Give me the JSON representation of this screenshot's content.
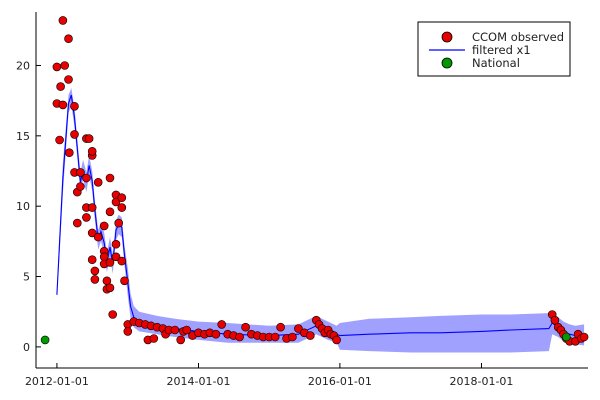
{
  "chart_data": {
    "type": "scatter",
    "title": "",
    "xlabel": "",
    "ylabel": "",
    "x_ticks": [
      "2012-01-01",
      "2014-01-01",
      "2016-01-01",
      "2018-01-01"
    ],
    "x_range": [
      "2011-09-15",
      "2019-07-05"
    ],
    "y_ticks": [
      0,
      5,
      10,
      15,
      20
    ],
    "ylim": [
      -1.5,
      23.8
    ],
    "grid": false,
    "legend_position": "top-right",
    "legend": [
      {
        "label": "CCOM observed",
        "kind": "marker",
        "color": "#e60000"
      },
      {
        "label": "filtered x1",
        "kind": "line",
        "color": "#0000ff"
      },
      {
        "label": "National",
        "kind": "marker",
        "color": "#009900"
      }
    ],
    "series": [
      {
        "name": "CCOM observed",
        "kind": "scatter",
        "color": "#e60000",
        "points": [
          [
            "2012-01-01",
            19.9
          ],
          [
            "2012-01-01",
            17.3
          ],
          [
            "2012-01-15",
            14.7
          ],
          [
            "2012-01-20",
            18.5
          ],
          [
            "2012-02-01",
            23.2
          ],
          [
            "2012-02-01",
            17.2
          ],
          [
            "2012-02-10",
            20.0
          ],
          [
            "2012-03-01",
            21.9
          ],
          [
            "2012-03-01",
            19.0
          ],
          [
            "2012-03-05",
            13.8
          ],
          [
            "2012-04-01",
            17.1
          ],
          [
            "2012-04-01",
            15.1
          ],
          [
            "2012-04-01",
            12.4
          ],
          [
            "2012-04-15",
            11.0
          ],
          [
            "2012-04-15",
            8.8
          ],
          [
            "2012-05-01",
            12.4
          ],
          [
            "2012-05-01",
            11.4
          ],
          [
            "2012-06-01",
            14.8
          ],
          [
            "2012-06-01",
            12.0
          ],
          [
            "2012-06-01",
            9.9
          ],
          [
            "2012-06-01",
            9.2
          ],
          [
            "2012-06-15",
            14.8
          ],
          [
            "2012-07-01",
            13.6
          ],
          [
            "2012-07-01",
            13.9
          ],
          [
            "2012-07-01",
            9.9
          ],
          [
            "2012-07-01",
            8.1
          ],
          [
            "2012-07-01",
            6.2
          ],
          [
            "2012-07-15",
            5.4
          ],
          [
            "2012-07-15",
            4.8
          ],
          [
            "2012-08-01",
            11.7
          ],
          [
            "2012-08-01",
            7.8
          ],
          [
            "2012-09-01",
            8.6
          ],
          [
            "2012-09-01",
            6.8
          ],
          [
            "2012-09-01",
            6.4
          ],
          [
            "2012-09-01",
            5.9
          ],
          [
            "2012-09-15",
            4.7
          ],
          [
            "2012-09-15",
            4.1
          ],
          [
            "2012-10-01",
            12.0
          ],
          [
            "2012-10-01",
            9.6
          ],
          [
            "2012-10-01",
            6.0
          ],
          [
            "2012-10-01",
            4.2
          ],
          [
            "2012-10-15",
            2.3
          ],
          [
            "2012-11-01",
            10.8
          ],
          [
            "2012-11-01",
            10.3
          ],
          [
            "2012-11-01",
            7.3
          ],
          [
            "2012-11-01",
            6.4
          ],
          [
            "2012-11-15",
            8.8
          ],
          [
            "2012-12-01",
            10.6
          ],
          [
            "2012-12-01",
            9.9
          ],
          [
            "2012-12-01",
            6.1
          ],
          [
            "2012-12-15",
            4.7
          ],
          [
            "2013-01-01",
            1.6
          ],
          [
            "2013-01-01",
            1.1
          ],
          [
            "2013-02-01",
            1.8
          ],
          [
            "2013-03-01",
            1.7
          ],
          [
            "2013-04-01",
            1.6
          ],
          [
            "2013-04-15",
            0.5
          ],
          [
            "2013-05-01",
            1.5
          ],
          [
            "2013-05-15",
            0.6
          ],
          [
            "2013-06-01",
            1.4
          ],
          [
            "2013-07-01",
            1.3
          ],
          [
            "2013-07-15",
            0.9
          ],
          [
            "2013-08-01",
            1.2
          ],
          [
            "2013-09-01",
            1.2
          ],
          [
            "2013-10-01",
            0.5
          ],
          [
            "2013-10-15",
            1.1
          ],
          [
            "2013-11-01",
            1.2
          ],
          [
            "2013-12-01",
            0.8
          ],
          [
            "2014-01-01",
            1.0
          ],
          [
            "2014-02-01",
            0.9
          ],
          [
            "2014-03-01",
            1.0
          ],
          [
            "2014-04-01",
            0.9
          ],
          [
            "2014-05-01",
            1.6
          ],
          [
            "2014-06-01",
            0.9
          ],
          [
            "2014-07-01",
            0.8
          ],
          [
            "2014-08-01",
            0.7
          ],
          [
            "2014-09-01",
            1.4
          ],
          [
            "2014-10-01",
            0.9
          ],
          [
            "2014-11-01",
            0.8
          ],
          [
            "2014-12-01",
            0.7
          ],
          [
            "2015-01-01",
            0.7
          ],
          [
            "2015-02-01",
            0.7
          ],
          [
            "2015-03-01",
            1.4
          ],
          [
            "2015-04-01",
            0.6
          ],
          [
            "2015-05-01",
            0.7
          ],
          [
            "2015-06-01",
            1.3
          ],
          [
            "2015-07-01",
            1.0
          ],
          [
            "2015-08-01",
            0.8
          ],
          [
            "2015-09-01",
            1.9
          ],
          [
            "2015-09-15",
            1.6
          ],
          [
            "2015-10-01",
            1.3
          ],
          [
            "2015-10-15",
            1.0
          ],
          [
            "2015-11-01",
            1.2
          ],
          [
            "2015-11-15",
            0.9
          ],
          [
            "2015-12-01",
            0.8
          ],
          [
            "2015-12-15",
            0.5
          ],
          [
            "2019-01-01",
            2.3
          ],
          [
            "2019-01-15",
            1.9
          ],
          [
            "2019-02-01",
            1.4
          ],
          [
            "2019-02-15",
            1.2
          ],
          [
            "2019-03-01",
            0.9
          ],
          [
            "2019-03-15",
            0.6
          ],
          [
            "2019-04-01",
            0.4
          ],
          [
            "2019-05-01",
            0.4
          ],
          [
            "2019-05-15",
            0.9
          ],
          [
            "2019-06-01",
            0.6
          ],
          [
            "2019-06-15",
            0.7
          ]
        ]
      },
      {
        "name": "filtered x1",
        "kind": "line",
        "color": "#0000ff",
        "band_color": "#8080ff",
        "points": [
          [
            "2012-01-01",
            3.7,
            3.7,
            3.7
          ],
          [
            "2012-01-10",
            6.2,
            5.5,
            7.0
          ],
          [
            "2012-02-01",
            12.0,
            10.9,
            13.1
          ],
          [
            "2012-03-01",
            17.3,
            16.6,
            17.9
          ],
          [
            "2012-03-15",
            17.9,
            17.2,
            18.4
          ],
          [
            "2012-04-01",
            16.3,
            15.6,
            17.0
          ],
          [
            "2012-04-15",
            14.1,
            13.4,
            14.8
          ],
          [
            "2012-05-01",
            11.7,
            11.0,
            12.4
          ],
          [
            "2012-05-15",
            12.6,
            11.9,
            13.3
          ],
          [
            "2012-06-01",
            11.7,
            11.0,
            12.4
          ],
          [
            "2012-06-15",
            12.9,
            12.2,
            13.6
          ],
          [
            "2012-07-01",
            11.8,
            11.1,
            12.5
          ],
          [
            "2012-07-15",
            9.7,
            9.0,
            10.4
          ],
          [
            "2012-08-01",
            7.6,
            6.9,
            8.3
          ],
          [
            "2012-08-15",
            8.2,
            7.5,
            8.9
          ],
          [
            "2012-09-01",
            7.4,
            6.7,
            8.1
          ],
          [
            "2012-09-15",
            6.0,
            5.3,
            6.7
          ],
          [
            "2012-10-01",
            7.1,
            6.4,
            7.8
          ],
          [
            "2012-10-15",
            5.9,
            5.2,
            6.6
          ],
          [
            "2012-11-01",
            8.3,
            7.6,
            9.0
          ],
          [
            "2012-11-15",
            8.7,
            8.0,
            9.4
          ],
          [
            "2012-12-01",
            8.5,
            7.8,
            9.2
          ],
          [
            "2012-12-15",
            6.5,
            5.8,
            7.2
          ],
          [
            "2013-01-01",
            4.6,
            3.6,
            5.6
          ],
          [
            "2013-01-15",
            2.9,
            2.1,
            3.8
          ],
          [
            "2013-02-01",
            2.1,
            1.4,
            2.9
          ],
          [
            "2013-03-01",
            1.7,
            1.1,
            2.5
          ],
          [
            "2013-06-01",
            1.5,
            0.9,
            2.2
          ],
          [
            "2013-09-01",
            1.3,
            0.7,
            2.0
          ],
          [
            "2014-01-01",
            1.1,
            0.5,
            1.8
          ],
          [
            "2014-06-01",
            0.9,
            0.3,
            1.7
          ],
          [
            "2015-01-01",
            0.8,
            0.3,
            1.5
          ],
          [
            "2015-06-01",
            0.9,
            0.3,
            1.6
          ],
          [
            "2015-09-01",
            1.5,
            0.9,
            2.2
          ],
          [
            "2015-10-01",
            1.3,
            0.7,
            2.0
          ],
          [
            "2015-11-01",
            1.1,
            0.5,
            1.8
          ],
          [
            "2015-12-15",
            0.9,
            0.3,
            1.5
          ],
          [
            "2016-01-01",
            0.8,
            -0.2,
            1.7
          ],
          [
            "2016-06-01",
            0.9,
            -0.3,
            2.0
          ],
          [
            "2017-01-01",
            1.0,
            -0.4,
            2.1
          ],
          [
            "2017-06-01",
            1.0,
            -0.4,
            2.2
          ],
          [
            "2018-01-01",
            1.1,
            -0.4,
            2.3
          ],
          [
            "2018-06-01",
            1.2,
            -0.4,
            2.3
          ],
          [
            "2018-12-15",
            1.3,
            -0.3,
            2.4
          ],
          [
            "2019-01-01",
            1.7,
            0.9,
            2.4
          ],
          [
            "2019-02-01",
            1.4,
            0.7,
            2.1
          ],
          [
            "2019-03-01",
            1.1,
            0.4,
            1.8
          ],
          [
            "2019-04-01",
            0.9,
            0.2,
            1.6
          ],
          [
            "2019-05-01",
            0.8,
            0.2,
            1.5
          ],
          [
            "2019-06-15",
            0.8,
            0.1,
            1.6
          ]
        ]
      },
      {
        "name": "National",
        "kind": "scatter",
        "color": "#009900",
        "points": [
          [
            "2011-11-01",
            0.5
          ],
          [
            "2019-03-15",
            0.7
          ]
        ]
      }
    ]
  }
}
